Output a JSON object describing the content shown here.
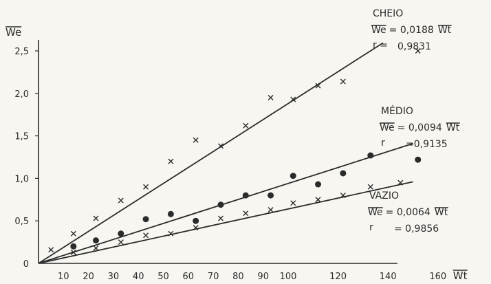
{
  "chart_data": {
    "type": "scatter",
    "title": "",
    "xlabel": "Wt",
    "ylabel": "We",
    "xlim": [
      0,
      160
    ],
    "ylim": [
      0,
      2.5
    ],
    "x_ticks": [
      10,
      20,
      30,
      40,
      50,
      60,
      70,
      80,
      90,
      100,
      120,
      140,
      160
    ],
    "x_tick_labels": [
      "10",
      "20",
      "30",
      "40",
      "50",
      "60",
      "70",
      "80",
      "90",
      "100",
      "120",
      "140",
      "160"
    ],
    "y_ticks": [
      0,
      0.5,
      1.0,
      1.5,
      2.0,
      2.5
    ],
    "y_tick_labels": [
      "0",
      "0,5",
      "1,0",
      "1,5",
      "2,0",
      "2,5"
    ],
    "grid": false,
    "series": [
      {
        "name": "CHEIO",
        "marker": "x",
        "slope": 0.0188,
        "equation_lhs": "We",
        "equation_mid": "= 0,0188",
        "equation_rhs": "Wt",
        "r_label": "r  =",
        "r_value": "0,9831",
        "points": [
          [
            14,
            0.35
          ],
          [
            23,
            0.53
          ],
          [
            33,
            0.74
          ],
          [
            43,
            0.9
          ],
          [
            53,
            1.2
          ],
          [
            63,
            1.45
          ],
          [
            73,
            1.38
          ],
          [
            83,
            1.62
          ],
          [
            93,
            1.95
          ],
          [
            102,
            1.93
          ],
          [
            112,
            2.09
          ],
          [
            122,
            2.14
          ],
          [
            152,
            2.5
          ]
        ]
      },
      {
        "name": "MÉDIO",
        "marker": "circle",
        "slope": 0.0094,
        "equation_lhs": "We",
        "equation_mid": "= 0,0094",
        "equation_rhs": "Wt",
        "r_label": "r",
        "r_value": "=0,9135",
        "points": [
          [
            14,
            0.2
          ],
          [
            23,
            0.27
          ],
          [
            33,
            0.35
          ],
          [
            43,
            0.52
          ],
          [
            53,
            0.58
          ],
          [
            63,
            0.5
          ],
          [
            73,
            0.69
          ],
          [
            83,
            0.8
          ],
          [
            93,
            0.8
          ],
          [
            102,
            1.03
          ],
          [
            112,
            0.93
          ],
          [
            122,
            1.06
          ],
          [
            133,
            1.27
          ],
          [
            152,
            1.22
          ]
        ]
      },
      {
        "name": "VAZIO",
        "marker": "x",
        "slope": 0.0064,
        "equation_lhs": "We",
        "equation_mid": "= 0,0064",
        "equation_rhs": "Wt",
        "r_label": "r",
        "r_value": "= 0,9856",
        "points": [
          [
            5,
            0.16
          ],
          [
            14,
            0.13
          ],
          [
            23,
            0.18
          ],
          [
            33,
            0.25
          ],
          [
            43,
            0.33
          ],
          [
            53,
            0.35
          ],
          [
            63,
            0.42
          ],
          [
            73,
            0.53
          ],
          [
            83,
            0.59
          ],
          [
            93,
            0.63
          ],
          [
            102,
            0.71
          ],
          [
            112,
            0.75
          ],
          [
            122,
            0.8
          ],
          [
            133,
            0.9
          ],
          [
            145,
            0.95
          ]
        ]
      }
    ]
  }
}
